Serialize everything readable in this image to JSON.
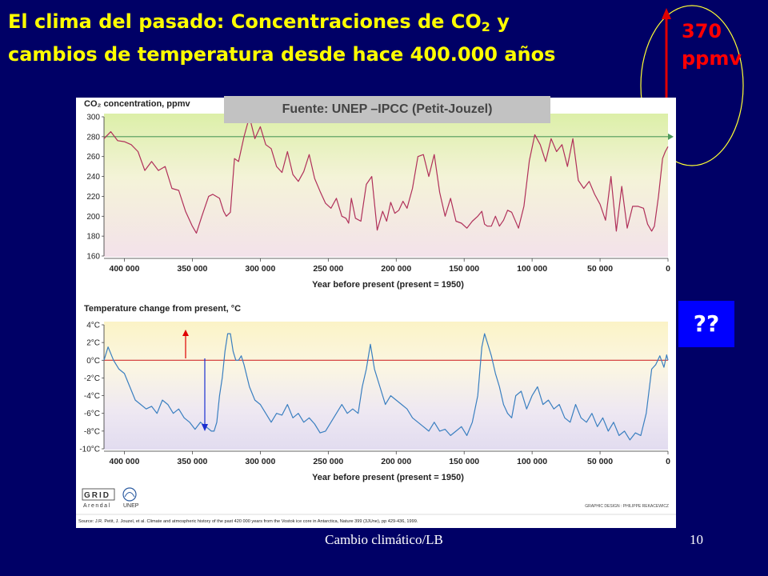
{
  "slide": {
    "title_line1": "El clima del pasado: Concentraciones de CO",
    "title_sub": "2",
    "title_line1_end": " y",
    "title_line2": "cambios de temperatura desde hace 400.000 años",
    "callout_value": "370",
    "callout_unit": "ppmv",
    "question_box": "??",
    "footer_center": "Cambio climático/LB",
    "page_number": "10",
    "source_banner": "Fuente: UNEP –IPCC (Petit-Jouzel)"
  },
  "figure": {
    "credit_right": "GRAPHIC DESIGN : PHILIPPE REKACEWICZ",
    "citation": "Source: J.R. Petit, J. Jouzel, et al. Climate and atmospheric history of the past 420 000 years from the Vostok ice core in Antarctica, Nature 399 (3JUne), pp 429-436, 1999.",
    "logo_grid": "GRID",
    "logo_arendal": "Arendal",
    "logo_unep": "UNEP"
  },
  "chart_data": [
    {
      "type": "line",
      "title": "CO₂ concentration, ppmv",
      "xlabel": "Year before present (present = 1950)",
      "xlim": [
        415000,
        0
      ],
      "ylim": [
        160,
        300
      ],
      "x_ticks": [
        400000,
        350000,
        300000,
        250000,
        200000,
        150000,
        100000,
        50000,
        0
      ],
      "x_tick_labels": [
        "400 000",
        "350 000",
        "300 000",
        "250 000",
        "200 000",
        "150 000",
        "100 000",
        "50 000",
        "0"
      ],
      "y_ticks": [
        160,
        180,
        200,
        220,
        240,
        260,
        280,
        300
      ],
      "reference_line": 280,
      "series": [
        {
          "color": "#b0305a",
          "x": [
            415000,
            410000,
            405000,
            400000,
            395000,
            390000,
            385000,
            380000,
            375000,
            370000,
            365000,
            360000,
            355000,
            350000,
            347000,
            343000,
            338000,
            335000,
            330000,
            327000,
            325000,
            322000,
            319000,
            316000,
            312000,
            308000,
            304000,
            300000,
            296000,
            292000,
            288000,
            284000,
            280000,
            276000,
            272000,
            268000,
            264000,
            260000,
            256000,
            252000,
            248000,
            244000,
            240000,
            237000,
            235000,
            233000,
            230000,
            226000,
            222000,
            218000,
            214000,
            210000,
            207000,
            204000,
            201000,
            198000,
            195000,
            192000,
            188000,
            184000,
            180000,
            176000,
            172000,
            168000,
            164000,
            160000,
            156000,
            152000,
            148000,
            144000,
            140000,
            137000,
            135000,
            133000,
            130000,
            127000,
            124000,
            121000,
            118000,
            115000,
            110000,
            106000,
            102000,
            98000,
            94000,
            90000,
            86000,
            82000,
            78000,
            74000,
            70000,
            66000,
            62000,
            58000,
            54000,
            50000,
            46000,
            42000,
            38000,
            34000,
            30000,
            26000,
            22000,
            18000,
            15000,
            12000,
            10000,
            7000,
            4000,
            2000,
            0
          ],
          "values": [
            278,
            285,
            276,
            275,
            272,
            265,
            246,
            255,
            246,
            250,
            228,
            226,
            205,
            190,
            183,
            200,
            220,
            222,
            218,
            205,
            200,
            204,
            258,
            255,
            280,
            300,
            278,
            290,
            272,
            268,
            250,
            244,
            265,
            242,
            235,
            245,
            262,
            238,
            225,
            213,
            208,
            218,
            200,
            198,
            193,
            218,
            198,
            195,
            232,
            240,
            186,
            205,
            195,
            214,
            203,
            206,
            215,
            208,
            228,
            260,
            262,
            240,
            262,
            224,
            200,
            218,
            195,
            193,
            188,
            195,
            200,
            205,
            192,
            190,
            190,
            200,
            190,
            196,
            206,
            204,
            188,
            210,
            256,
            282,
            272,
            255,
            278,
            265,
            272,
            250,
            278,
            236,
            228,
            235,
            222,
            212,
            196,
            240,
            185,
            230,
            188,
            210,
            210,
            208,
            192,
            185,
            190,
            220,
            258,
            265,
            270
          ]
        }
      ]
    },
    {
      "type": "line",
      "title": "Temperature change from present, °C",
      "xlabel": "Year before present (present = 1950)",
      "xlim": [
        415000,
        0
      ],
      "ylim": [
        -10,
        4
      ],
      "x_ticks": [
        400000,
        350000,
        300000,
        250000,
        200000,
        150000,
        100000,
        50000,
        0
      ],
      "x_tick_labels": [
        "400 000",
        "350 000",
        "300 000",
        "250 000",
        "200 000",
        "150 000",
        "100 000",
        "50 000",
        "0"
      ],
      "y_ticks": [
        4,
        2,
        0,
        -2,
        -4,
        -6,
        -8,
        -10
      ],
      "y_tick_labels": [
        "4°C",
        "2°C",
        "0°C",
        "-2°C",
        "-4°C",
        "-6°C",
        "-8°C",
        "-10°C"
      ],
      "reference_line": 0,
      "series": [
        {
          "color": "#3a7fc0",
          "x": [
            415000,
            412000,
            408000,
            404000,
            400000,
            396000,
            392000,
            388000,
            384000,
            380000,
            376000,
            372000,
            368000,
            364000,
            360000,
            356000,
            352000,
            348000,
            344000,
            340000,
            336000,
            334000,
            332000,
            330000,
            328000,
            326000,
            324000,
            322000,
            320000,
            318000,
            316000,
            314000,
            312000,
            308000,
            304000,
            300000,
            296000,
            292000,
            288000,
            284000,
            280000,
            276000,
            272000,
            268000,
            264000,
            260000,
            256000,
            252000,
            248000,
            244000,
            240000,
            236000,
            232000,
            228000,
            225000,
            222000,
            219000,
            216000,
            212000,
            208000,
            204000,
            200000,
            196000,
            192000,
            188000,
            184000,
            180000,
            176000,
            172000,
            168000,
            164000,
            160000,
            156000,
            152000,
            148000,
            144000,
            140000,
            137000,
            135000,
            133000,
            130000,
            127000,
            124000,
            121000,
            118000,
            115000,
            112000,
            108000,
            104000,
            100000,
            96000,
            92000,
            88000,
            84000,
            80000,
            76000,
            72000,
            68000,
            64000,
            60000,
            56000,
            52000,
            48000,
            44000,
            40000,
            36000,
            32000,
            28000,
            24000,
            20000,
            16000,
            12000,
            9000,
            6000,
            3000,
            1000,
            0
          ],
          "values": [
            0,
            1.5,
            0,
            -1,
            -1.5,
            -3,
            -4.5,
            -5,
            -5.5,
            -5.2,
            -6,
            -4.5,
            -5,
            -6,
            -5.5,
            -6.5,
            -7,
            -7.8,
            -7,
            -7.5,
            -8,
            -8,
            -7,
            -4,
            -2,
            1,
            3,
            3,
            1,
            0,
            0,
            0.5,
            -0.5,
            -3,
            -4.5,
            -5,
            -6,
            -7,
            -6,
            -6.2,
            -5,
            -6.5,
            -6,
            -7,
            -6.5,
            -7.2,
            -8.2,
            -8,
            -7,
            -6,
            -5,
            -6,
            -5.5,
            -6,
            -3,
            -1,
            1.8,
            -1,
            -3,
            -5,
            -4,
            -4.5,
            -5,
            -5.5,
            -6.5,
            -7,
            -7.5,
            -8,
            -7,
            -8,
            -7.8,
            -8.5,
            -8,
            -7.5,
            -8.5,
            -7,
            -4,
            1.5,
            3,
            2,
            0.5,
            -1.5,
            -3,
            -5,
            -6,
            -6.5,
            -4,
            -3.5,
            -5.5,
            -4,
            -3,
            -5,
            -4.5,
            -5.5,
            -5,
            -6.5,
            -7,
            -5,
            -6.5,
            -7,
            -6,
            -7.5,
            -6.5,
            -8,
            -7,
            -8.5,
            -8,
            -9,
            -8.2,
            -8.5,
            -6,
            -1,
            -0.5,
            0.5,
            -0.8,
            0.6,
            0
          ]
        }
      ]
    }
  ]
}
